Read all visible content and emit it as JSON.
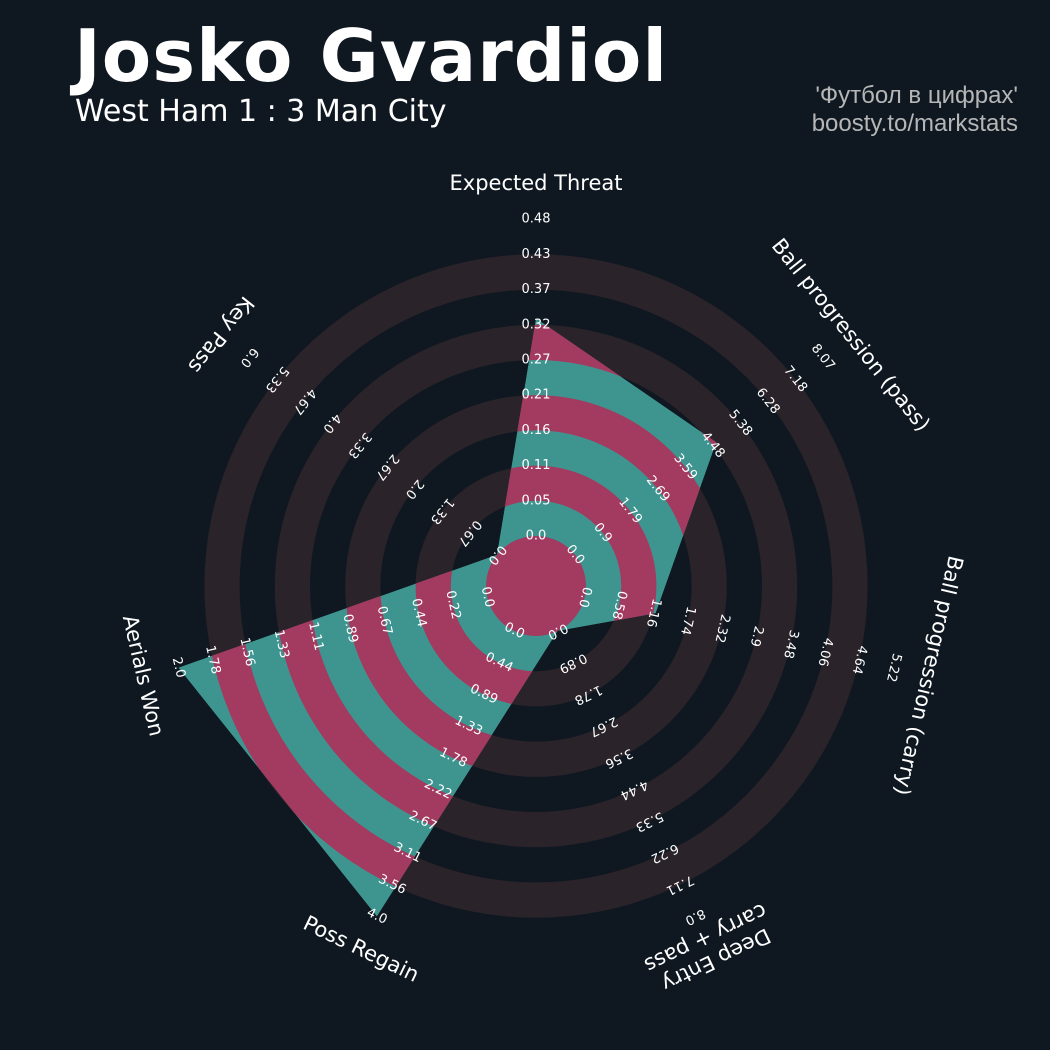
{
  "header": {
    "title": "Josko Gvardiol",
    "subtitle": "West Ham 1 : 3 Man City",
    "credit_line1": "'Футбол в цифрах'",
    "credit_line2": "boosty.to/markstats"
  },
  "colors": {
    "background": "#0f1821",
    "ring_band": "#2a2329",
    "fill_primary": "#3e9590",
    "fill_alternate": "#a33a5f",
    "text": "#ffffff"
  },
  "chart_data": {
    "type": "radar",
    "title": "Josko Gvardiol",
    "params": [
      {
        "label": "Expected Threat",
        "value": 0.33,
        "min": 0.0,
        "max": 0.48,
        "ticks": [
          "0.0",
          "0.05",
          "0.11",
          "0.16",
          "0.21",
          "0.27",
          "0.32",
          "0.37",
          "0.43",
          "0.48"
        ]
      },
      {
        "label": "Ball progression (pass)",
        "value": 4.6,
        "min": 0.0,
        "max": 8.07,
        "ticks": [
          "0.0",
          "0.9",
          "1.79",
          "2.69",
          "3.59",
          "4.48",
          "5.38",
          "6.28",
          "7.18",
          "8.07"
        ]
      },
      {
        "label": "Ball progression (carry)",
        "value": 1.2,
        "min": 0.0,
        "max": 5.22,
        "ticks": [
          "0.0",
          "0.58",
          "1.16",
          "1.74",
          "2.32",
          "2.9",
          "3.48",
          "4.06",
          "4.64",
          "5.22"
        ]
      },
      {
        "label": "Deep Entry\ncarry + pass",
        "value": 0.0,
        "min": 0.0,
        "max": 8.0,
        "ticks": [
          "0.0",
          "0.89",
          "1.78",
          "2.67",
          "3.56",
          "4.44",
          "5.33",
          "6.22",
          "7.11",
          "8.0"
        ]
      },
      {
        "label": "Poss Regain",
        "value": 4.0,
        "min": 0.0,
        "max": 4.0,
        "ticks": [
          "0.0",
          "0.44",
          "0.89",
          "1.33",
          "1.78",
          "2.22",
          "2.67",
          "3.11",
          "3.56",
          "4.0"
        ]
      },
      {
        "label": "Aerials Won",
        "value": 2.0,
        "min": 0.0,
        "max": 2.0,
        "ticks": [
          "0.0",
          "0.22",
          "0.44",
          "0.67",
          "0.89",
          "1.11",
          "1.33",
          "1.56",
          "1.78",
          "2.0"
        ]
      },
      {
        "label": "Key Pass",
        "value": 0.0,
        "min": 0.0,
        "max": 6.0,
        "ticks": [
          "0.0",
          "0.67",
          "1.33",
          "2.0",
          "2.67",
          "3.33",
          "4.0",
          "4.67",
          "5.33",
          "6.0"
        ]
      }
    ],
    "rings": 9,
    "grid": true
  }
}
